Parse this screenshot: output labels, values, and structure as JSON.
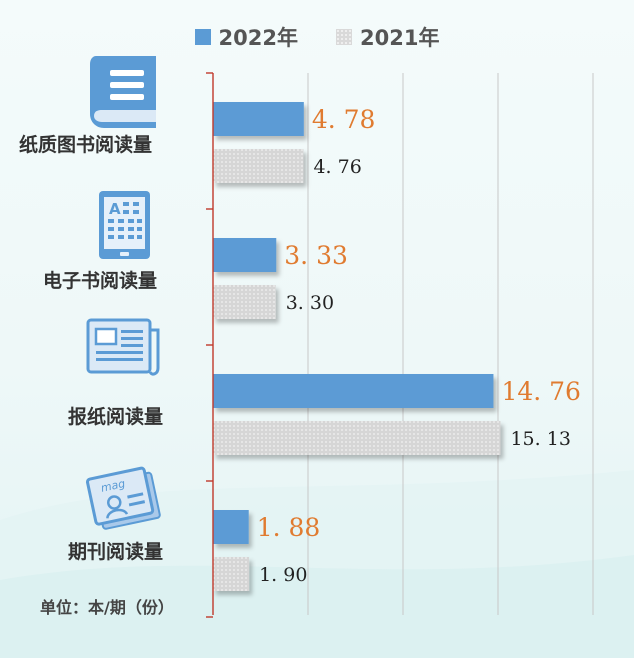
{
  "legend": [
    {
      "name": "2022年",
      "color": "#5b9bd5"
    },
    {
      "name": "2021年",
      "color": "#d9d9d9"
    }
  ],
  "unit_label": "单位：本/期（份）",
  "icons": [
    "book-icon",
    "ebook-icon",
    "newspaper-icon",
    "magazine-icon"
  ],
  "icon_texts": {
    "ebook_letter": "A",
    "magazine_text": "mag"
  },
  "colors": {
    "bar_2022": "#5b9bd5",
    "bar_2021": "#d9d9d9",
    "label_2022": "#e07b30",
    "label_2021": "#222222",
    "axis": "#c0392b",
    "grid": "#c8c8c8"
  },
  "chart_data": {
    "type": "bar",
    "orientation": "horizontal",
    "categories": [
      "纸质图书阅读量",
      "电子书阅读量",
      "报纸阅读量",
      "期刊阅读量"
    ],
    "series": [
      {
        "name": "2022年",
        "values": [
          4.78,
          3.33,
          14.76,
          1.88
        ],
        "labels": [
          "4. 78",
          "3. 33",
          "14. 76",
          "1. 88"
        ]
      },
      {
        "name": "2021年",
        "values": [
          4.76,
          3.3,
          15.13,
          1.9
        ],
        "labels": [
          "4. 76",
          "3. 30",
          "15. 13",
          "1. 90"
        ]
      }
    ],
    "xlim": [
      0,
      20
    ],
    "grid": true,
    "legend_position": "top-center"
  }
}
